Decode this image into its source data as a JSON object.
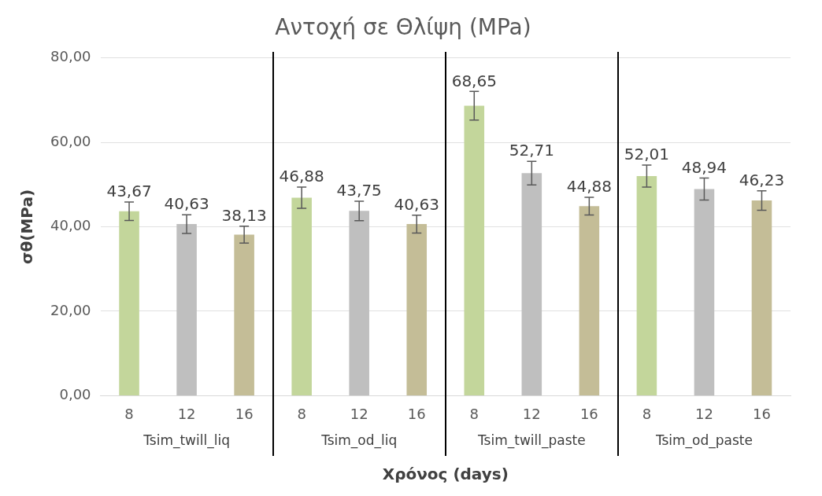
{
  "chart_data": {
    "type": "bar",
    "title": "Αντοχή σε Θλίψη (MPa)",
    "xlabel": "Χρόνος (days)",
    "ylabel": "σθ(MPa)",
    "categories": [
      "8",
      "12",
      "16",
      "8",
      "12",
      "16",
      "8",
      "12",
      "16",
      "8",
      "12",
      "16"
    ],
    "values": [
      43.67,
      40.63,
      38.13,
      46.88,
      43.75,
      40.63,
      68.65,
      52.71,
      44.88,
      52.01,
      48.94,
      46.23
    ],
    "errors": [
      2.2,
      2.2,
      2.0,
      2.5,
      2.3,
      2.1,
      3.4,
      2.8,
      2.1,
      2.6,
      2.6,
      2.3
    ],
    "value_labels": [
      "43,67",
      "40,63",
      "38,13",
      "46,88",
      "43,75",
      "40,63",
      "68,65",
      "52,71",
      "44,88",
      "52,01",
      "48,94",
      "46,23"
    ],
    "colors": [
      "#c3d69b",
      "#bfbfbf",
      "#c4bd97",
      "#c3d69b",
      "#bfbfbf",
      "#c4bd97",
      "#c3d69b",
      "#bfbfbf",
      "#c4bd97",
      "#c3d69b",
      "#bfbfbf",
      "#c4bd97"
    ],
    "annotations": [
      "Tsim_twill_liq",
      "Tsim_od_liq",
      "Tsim_twill_paste",
      "Tsim_od_paste"
    ],
    "ylim": [
      0,
      80
    ],
    "yticks": [
      {
        "value": 0,
        "label": "0,00"
      },
      {
        "value": 20,
        "label": "20,00"
      },
      {
        "value": 40,
        "label": "40,00"
      },
      {
        "value": 60,
        "label": "60,00"
      },
      {
        "value": 80,
        "label": "80,00"
      }
    ],
    "grid": "y",
    "legend": false
  }
}
